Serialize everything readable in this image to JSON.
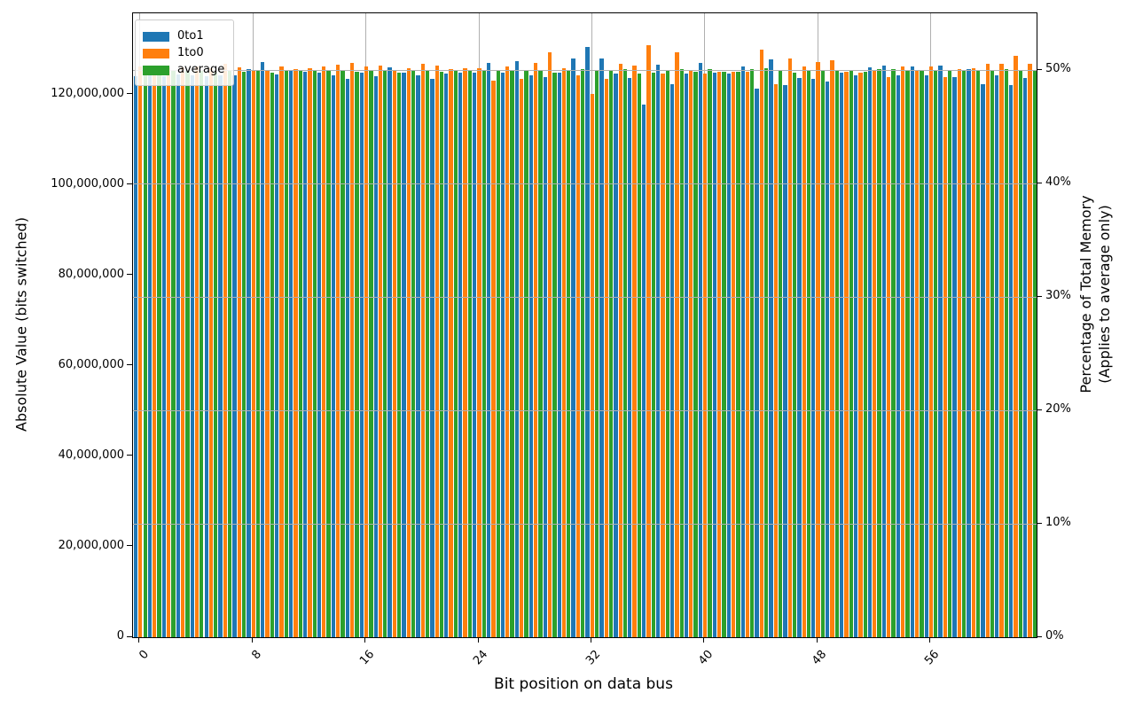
{
  "figure": {
    "background": "#ffffff",
    "title": ""
  },
  "chart_data": {
    "type": "bar",
    "title": "",
    "xlabel": "Bit position on data bus",
    "ylabel_left": "Absolute Value (bits switched)",
    "ylabel_right_line1": "Percentage of Total Memory",
    "ylabel_right_line2": "(Applies to average only)",
    "legend_position": "upper left",
    "grid": {
      "vertical": "at x ticks, behind bars",
      "horizontal": "at right-axis ticks, in front of bars",
      "color": "#b0b0b0"
    },
    "categories": [
      0,
      1,
      2,
      3,
      4,
      5,
      6,
      7,
      8,
      9,
      10,
      11,
      12,
      13,
      14,
      15,
      16,
      17,
      18,
      19,
      20,
      21,
      22,
      23,
      24,
      25,
      26,
      27,
      28,
      29,
      30,
      31,
      32,
      33,
      34,
      35,
      36,
      37,
      38,
      39,
      40,
      41,
      42,
      43,
      44,
      45,
      46,
      47,
      48,
      49,
      50,
      51,
      52,
      53,
      54,
      55,
      56,
      57,
      58,
      59,
      60,
      61,
      62,
      63
    ],
    "x_tick_values": [
      0,
      8,
      16,
      24,
      32,
      40,
      48,
      56
    ],
    "x_tick_labels": [
      "0",
      "8",
      "16",
      "24",
      "32",
      "40",
      "48",
      "56"
    ],
    "y_left": {
      "lim": [
        0,
        138000000
      ],
      "tick_values": [
        0,
        20000000,
        40000000,
        60000000,
        80000000,
        100000000,
        120000000
      ],
      "tick_labels": [
        "0",
        "20,000,000",
        "40,000,000",
        "60,000,000",
        "80,000,000",
        "100,000,000",
        "120,000,000"
      ]
    },
    "y_right": {
      "lim": [
        0,
        55
      ],
      "tick_values": [
        0,
        10,
        20,
        30,
        40,
        50
      ],
      "tick_labels": [
        "0%",
        "10%",
        "20%",
        "30%",
        "40%",
        "50%"
      ]
    },
    "series": [
      {
        "name": "0to1",
        "color": "#1f77b4",
        "values": [
          124000000,
          124300000,
          124100000,
          124400000,
          124200000,
          124000000,
          124300000,
          124300000,
          125600000,
          127300000,
          124500000,
          125400000,
          125100000,
          124800000,
          124200000,
          123500000,
          124900000,
          124000000,
          126000000,
          124800000,
          124200000,
          123500000,
          124600000,
          124900000,
          124900000,
          127000000,
          124900000,
          127400000,
          124200000,
          123900000,
          124900000,
          128000000,
          130500000,
          128000000,
          124700000,
          123600000,
          117900000,
          126600000,
          122300000,
          124600000,
          127100000,
          124800000,
          124700000,
          126300000,
          121300000,
          127800000,
          122100000,
          123600000,
          123400000,
          123000000,
          124900000,
          124300000,
          126000000,
          126500000,
          124300000,
          126200000,
          124300000,
          126400000,
          123800000,
          125700000,
          122300000,
          124300000,
          122200000,
          123700000
        ]
      },
      {
        "name": "1to0",
        "color": "#ff7f0e",
        "values": [
          126300000,
          125900000,
          126100000,
          126000000,
          126200000,
          125800000,
          126800000,
          126000000,
          125500000,
          125300000,
          126200000,
          125700000,
          125800000,
          126200000,
          126600000,
          127000000,
          126200000,
          126400000,
          125400000,
          125800000,
          126800000,
          126500000,
          125700000,
          125800000,
          125900000,
          123200000,
          126200000,
          123500000,
          127000000,
          129400000,
          125900000,
          124300000,
          120100000,
          123400000,
          126800000,
          126400000,
          130900000,
          124600000,
          129300000,
          125300000,
          124600000,
          125000000,
          125000000,
          125000000,
          129900000,
          122300000,
          128000000,
          126300000,
          127300000,
          127600000,
          125000000,
          124900000,
          125300000,
          123800000,
          126200000,
          125400000,
          126200000,
          123900000,
          125700000,
          125900000,
          126800000,
          126800000,
          128500000,
          126800000
        ]
      },
      {
        "name": "average",
        "color": "#2ca02c",
        "values": [
          125200000,
          125100000,
          125200000,
          125200000,
          125200000,
          125000000,
          125500000,
          125000000,
          125400000,
          124800000,
          125400000,
          125400000,
          125300000,
          125300000,
          125500000,
          125100000,
          125400000,
          125500000,
          124900000,
          125300000,
          125400000,
          125100000,
          125300000,
          125400000,
          125400000,
          125300000,
          125500000,
          125200000,
          125500000,
          124900000,
          125300000,
          125600000,
          125400000,
          125200000,
          125600000,
          124700000,
          124800000,
          125400000,
          125700000,
          125100000,
          125600000,
          125100000,
          125100000,
          125600000,
          125800000,
          125300000,
          124800000,
          125300000,
          125300000,
          125400000,
          125200000,
          125000000,
          125700000,
          125600000,
          125300000,
          125400000,
          125500000,
          125500000,
          125300000,
          125300000,
          125500000,
          125700000,
          125200000,
          125300000
        ]
      }
    ]
  }
}
